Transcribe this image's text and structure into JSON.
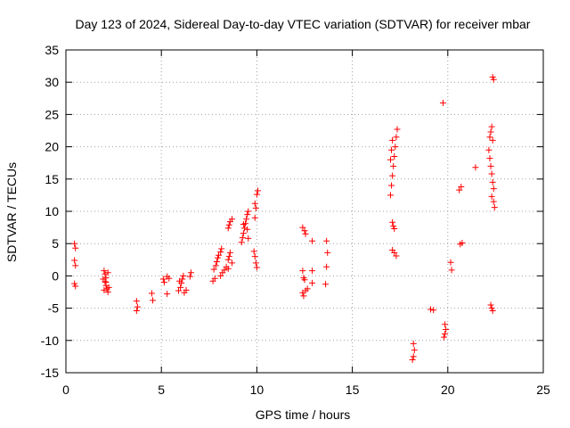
{
  "chart_data": {
    "type": "scatter",
    "title": "Day 123 of 2024, Sidereal Day-to-day VTEC variation (SDTVAR) for receiver mbar",
    "xlabel": "GPS time / hours",
    "ylabel": "SDTVAR / TECUs",
    "xlim": [
      0,
      25
    ],
    "ylim": [
      -15,
      35
    ],
    "xticks": [
      0,
      5,
      10,
      15,
      20,
      25
    ],
    "yticks": [
      -15,
      -10,
      -5,
      0,
      5,
      10,
      15,
      20,
      25,
      30,
      35
    ],
    "grid": true,
    "marker": "+",
    "marker_color": "#ff0000",
    "series": [
      {
        "name": "SDTVAR",
        "points": [
          [
            0.45,
            5.0
          ],
          [
            0.5,
            4.3
          ],
          [
            0.45,
            2.4
          ],
          [
            0.5,
            1.6
          ],
          [
            0.45,
            -1.2
          ],
          [
            0.5,
            -1.6
          ],
          [
            2.0,
            0.8
          ],
          [
            2.05,
            0.3
          ],
          [
            2.1,
            -0.3
          ],
          [
            2.05,
            -0.9
          ],
          [
            2.1,
            -1.5
          ],
          [
            2.15,
            -2.0
          ],
          [
            2.2,
            -2.5
          ],
          [
            2.0,
            -2.2
          ],
          [
            2.1,
            -1.0
          ],
          [
            2.2,
            0.5
          ],
          [
            2.25,
            -1.8
          ],
          [
            1.95,
            -0.5
          ],
          [
            3.7,
            -3.9
          ],
          [
            3.75,
            -4.8
          ],
          [
            3.7,
            -5.4
          ],
          [
            4.5,
            -2.7
          ],
          [
            4.55,
            -3.8
          ],
          [
            5.1,
            -0.5
          ],
          [
            5.15,
            -1.0
          ],
          [
            5.3,
            -0.1
          ],
          [
            5.4,
            -0.4
          ],
          [
            5.3,
            -2.8
          ],
          [
            5.9,
            -2.3
          ],
          [
            6.0,
            -1.8
          ],
          [
            6.05,
            -1.1
          ],
          [
            6.1,
            -0.5
          ],
          [
            6.15,
            0.0
          ],
          [
            6.2,
            -2.6
          ],
          [
            6.3,
            -2.2
          ],
          [
            5.95,
            -0.8
          ],
          [
            6.5,
            -0.1
          ],
          [
            6.55,
            0.5
          ],
          [
            7.7,
            -0.8
          ],
          [
            7.8,
            -0.4
          ],
          [
            7.75,
            1.0
          ],
          [
            7.85,
            1.6
          ],
          [
            7.9,
            2.2
          ],
          [
            7.95,
            2.8
          ],
          [
            8.0,
            3.2
          ],
          [
            8.1,
            3.7
          ],
          [
            8.15,
            4.2
          ],
          [
            8.1,
            0.0
          ],
          [
            8.2,
            0.5
          ],
          [
            8.3,
            0.9
          ],
          [
            8.4,
            1.4
          ],
          [
            8.5,
            1.1
          ],
          [
            8.5,
            2.5
          ],
          [
            8.55,
            3.0
          ],
          [
            8.6,
            3.6
          ],
          [
            8.7,
            2.0
          ],
          [
            8.5,
            7.4
          ],
          [
            8.55,
            7.9
          ],
          [
            8.6,
            8.4
          ],
          [
            8.7,
            8.8
          ],
          [
            9.2,
            5.2
          ],
          [
            9.25,
            5.9
          ],
          [
            9.3,
            6.6
          ],
          [
            9.35,
            7.4
          ],
          [
            9.4,
            8.1
          ],
          [
            9.45,
            8.8
          ],
          [
            9.5,
            9.5
          ],
          [
            9.55,
            10.0
          ],
          [
            9.3,
            8.0
          ],
          [
            9.5,
            7.2
          ],
          [
            9.55,
            5.8
          ],
          [
            9.9,
            9.0
          ],
          [
            9.95,
            10.5
          ],
          [
            9.9,
            11.2
          ],
          [
            10.0,
            12.6
          ],
          [
            10.05,
            13.2
          ],
          [
            9.85,
            3.8
          ],
          [
            9.9,
            3.0
          ],
          [
            9.95,
            2.0
          ],
          [
            10.0,
            1.3
          ],
          [
            12.4,
            7.5
          ],
          [
            12.5,
            7.0
          ],
          [
            12.55,
            6.5
          ],
          [
            12.4,
            0.8
          ],
          [
            12.45,
            -0.3
          ],
          [
            12.5,
            -0.6
          ],
          [
            12.4,
            -2.6
          ],
          [
            12.45,
            -3.1
          ],
          [
            12.55,
            -2.3
          ],
          [
            12.65,
            -2.0
          ],
          [
            12.9,
            5.4
          ],
          [
            12.9,
            0.8
          ],
          [
            12.9,
            -1.1
          ],
          [
            13.65,
            5.4
          ],
          [
            13.7,
            3.6
          ],
          [
            13.65,
            1.4
          ],
          [
            13.6,
            -1.3
          ],
          [
            17.0,
            12.5
          ],
          [
            17.05,
            14.0
          ],
          [
            17.1,
            15.5
          ],
          [
            17.15,
            17.0
          ],
          [
            17.2,
            18.5
          ],
          [
            17.25,
            20.0
          ],
          [
            17.3,
            21.5
          ],
          [
            17.35,
            22.7
          ],
          [
            17.0,
            18.0
          ],
          [
            17.05,
            19.5
          ],
          [
            17.1,
            21.0
          ],
          [
            17.1,
            8.3
          ],
          [
            17.15,
            7.7
          ],
          [
            17.2,
            7.3
          ],
          [
            17.1,
            4.0
          ],
          [
            17.2,
            3.6
          ],
          [
            17.3,
            3.1
          ],
          [
            18.2,
            -10.5
          ],
          [
            18.25,
            -11.5
          ],
          [
            18.2,
            -12.5
          ],
          [
            18.15,
            -13.0
          ],
          [
            19.1,
            -5.2
          ],
          [
            19.25,
            -5.3
          ],
          [
            19.75,
            26.8
          ],
          [
            19.85,
            -7.5
          ],
          [
            19.9,
            -8.3
          ],
          [
            19.85,
            -9.0
          ],
          [
            19.8,
            -9.5
          ],
          [
            20.15,
            2.1
          ],
          [
            20.2,
            0.9
          ],
          [
            20.6,
            13.3
          ],
          [
            20.7,
            13.8
          ],
          [
            20.65,
            4.9
          ],
          [
            20.75,
            5.1
          ],
          [
            21.45,
            16.8
          ],
          [
            22.15,
            19.5
          ],
          [
            22.2,
            21.5
          ],
          [
            22.25,
            22.3
          ],
          [
            22.3,
            23.1
          ],
          [
            22.2,
            18.2
          ],
          [
            22.25,
            17.0
          ],
          [
            22.3,
            15.8
          ],
          [
            22.35,
            14.5
          ],
          [
            22.4,
            13.5
          ],
          [
            22.3,
            12.3
          ],
          [
            22.4,
            11.5
          ],
          [
            22.45,
            10.6
          ],
          [
            22.35,
            21.0
          ],
          [
            22.25,
            -4.5
          ],
          [
            22.3,
            -5.0
          ],
          [
            22.35,
            -5.4
          ],
          [
            22.35,
            30.8
          ],
          [
            22.4,
            30.4
          ]
        ]
      }
    ]
  }
}
